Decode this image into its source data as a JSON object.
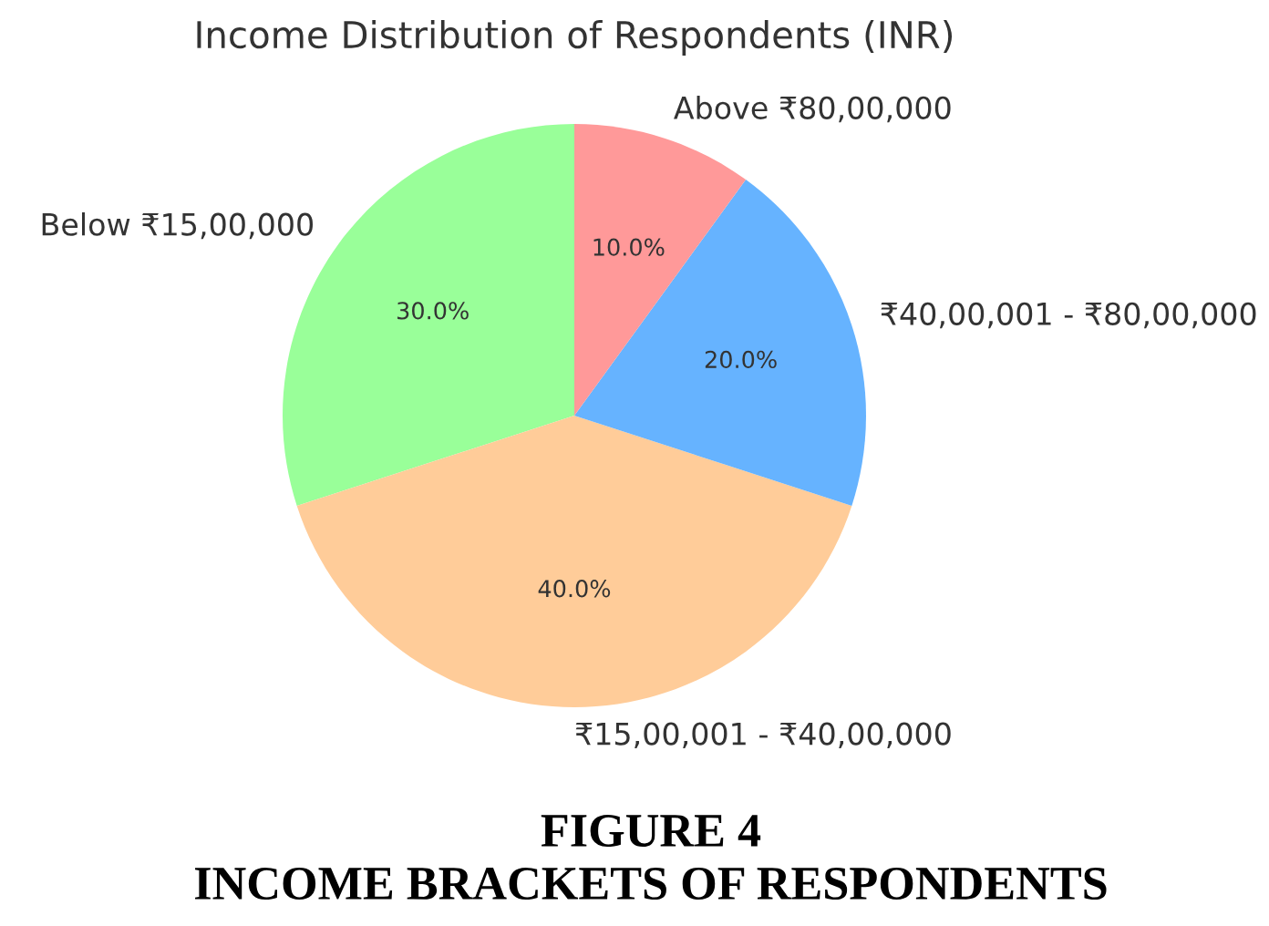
{
  "chart_data": {
    "type": "pie",
    "title": "Income Distribution of Respondents (INR)",
    "categories": [
      "Below ₹15,00,000",
      "₹15,00,001 - ₹40,00,000",
      "₹40,00,001 - ₹80,00,000",
      "Above ₹80,00,000"
    ],
    "values": [
      30,
      40,
      20,
      10
    ],
    "colors": [
      "#99ff99",
      "#ffcc99",
      "#66b3ff",
      "#ff9999"
    ],
    "value_labels": [
      "30.0%",
      "40.0%",
      "20.0%",
      "10.0%"
    ],
    "annotations": [
      "FIGURE 4",
      "INCOME BRACKETS OF RESPONDENTS"
    ]
  }
}
